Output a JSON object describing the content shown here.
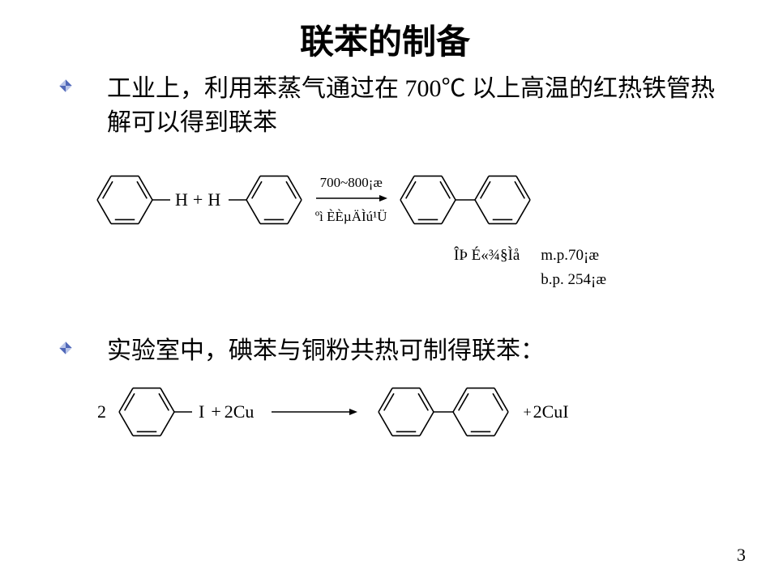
{
  "title": "联苯的制备",
  "bullets": {
    "b1": "工业上，利用苯蒸气通过在 700℃ 以上高温的红热铁管热解可以得到联苯",
    "b2": "实验室中，碘苯与铜粉共热可制得联苯："
  },
  "rxn1": {
    "leftH": "H",
    "plus": "+",
    "rightH": "H",
    "arrow_top": "700~800¡æ",
    "arrow_bottom": "ºì ÈÈµÄÌú¹Ü",
    "prod_label": "ÎÞ É«¾§Ìå",
    "mp": "m.p.70¡æ",
    "bp": "b.p. 254¡æ"
  },
  "rxn2": {
    "coef2_left": "2",
    "I": "I",
    "plus": "+",
    "Cu": "2Cu",
    "plus2": "+",
    "CuI": "2CuI"
  },
  "page": "3",
  "colors": {
    "bullet_light": "#b8c4e8",
    "bullet_dark": "#5068b8",
    "stroke": "#000000"
  },
  "ring": {
    "size": 88,
    "hex_r": 34,
    "bond_stroke": 1.6,
    "inner_gap": 5
  }
}
